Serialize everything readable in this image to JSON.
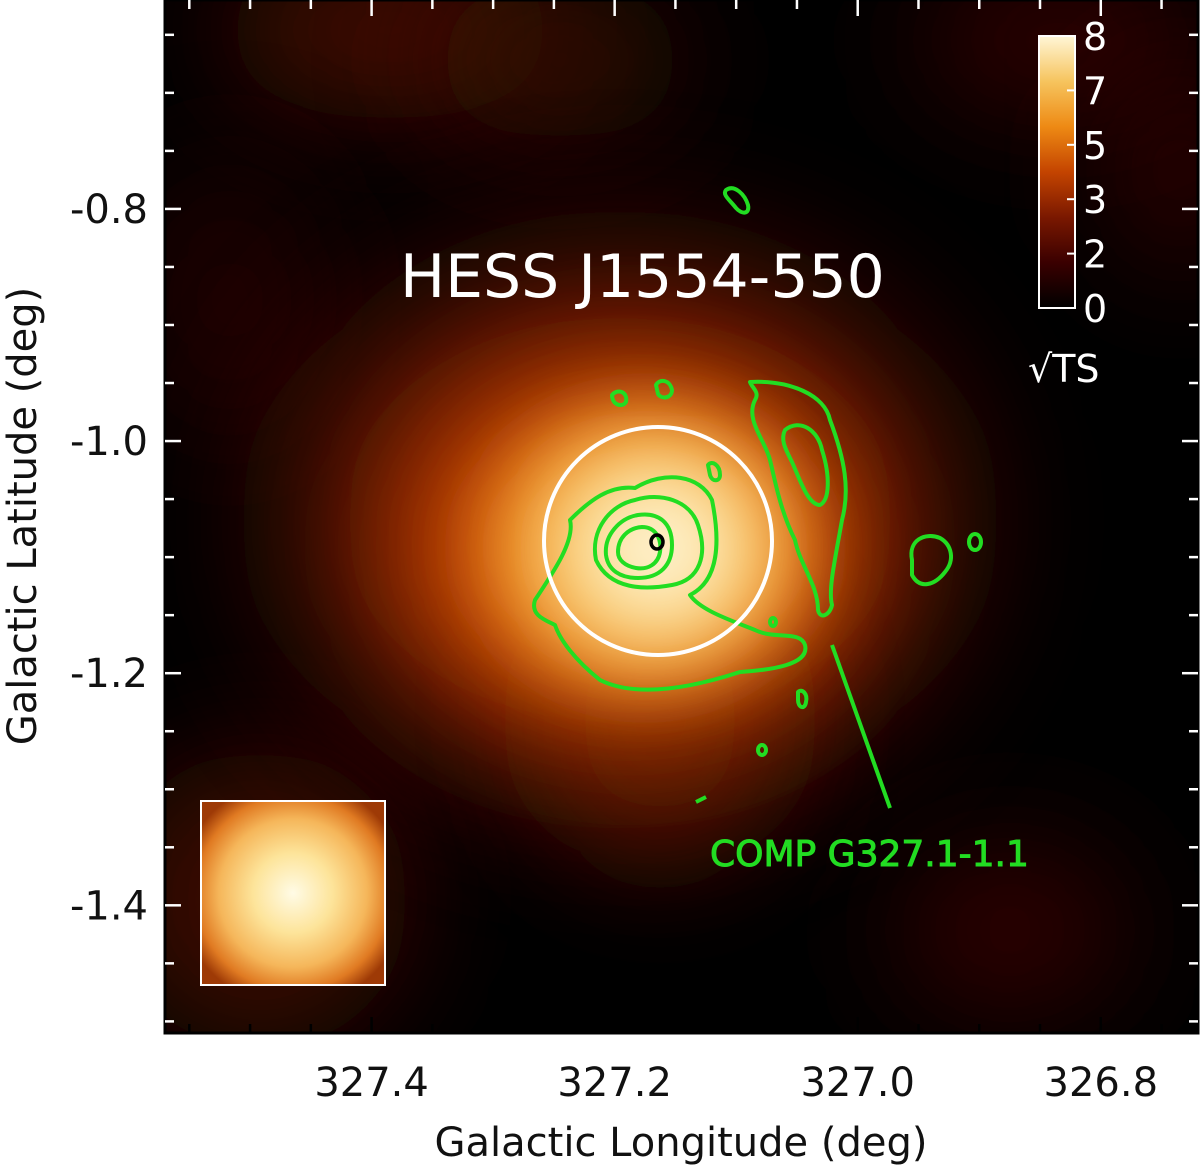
{
  "chart_data": {
    "type": "heatmap",
    "title": "HESS J1554-550",
    "xlabel": "Galactic Longitude (deg)",
    "ylabel": "Galactic Latitude (deg)",
    "xlim": [
      327.57,
      326.72
    ],
    "ylim": [
      -1.51,
      -0.62
    ],
    "x_inverted": true,
    "x_ticks": [
      327.4,
      327.2,
      327.0,
      326.8
    ],
    "x_tick_labels": [
      "327.4",
      "327.2",
      "327.0",
      "326.8"
    ],
    "y_ticks": [
      -0.8,
      -1.0,
      -1.2,
      -1.4
    ],
    "y_tick_labels": [
      "-0.8",
      "-1.0",
      "-1.2",
      "-1.4"
    ],
    "colorbar": {
      "label": "√TS",
      "ticks": [
        0,
        2,
        3,
        5,
        7,
        8
      ],
      "tick_labels": [
        "0",
        "2",
        "3",
        "5",
        "7",
        "8"
      ],
      "range": [
        0,
        8
      ],
      "colormap": [
        "#000000",
        "#3a0000",
        "#7a1800",
        "#c44400",
        "#ee8a14",
        "#f6c45e",
        "#fff6d6"
      ],
      "placement": "top-right"
    },
    "peak": {
      "l": 327.16,
      "b": -1.08,
      "sqrt_ts": 8
    },
    "extension_circle": {
      "l": 327.16,
      "b": -1.075,
      "radius_deg": 0.1,
      "color": "#ffffff"
    },
    "best_fit_marker": {
      "l": 327.16,
      "b": -1.08,
      "color": "#000000"
    },
    "contours": {
      "label": "COMP G327.1-1.1",
      "color": "#22dd22",
      "levels": 4
    },
    "psf_inset": {
      "placement": "bottom-left"
    },
    "grid": false
  }
}
